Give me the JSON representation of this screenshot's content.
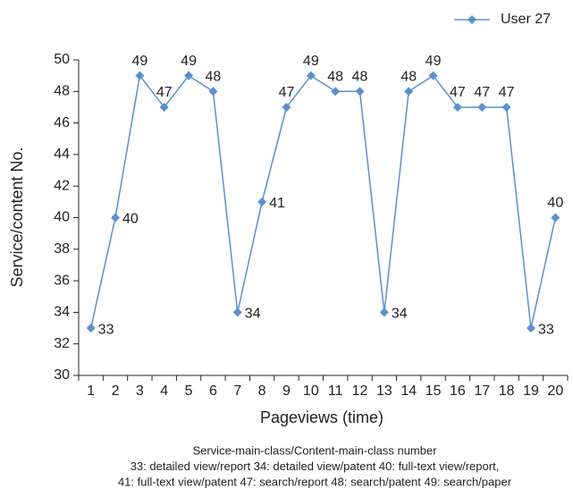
{
  "chart_data": {
    "type": "line",
    "categories": [
      "1",
      "2",
      "3",
      "4",
      "5",
      "6",
      "7",
      "8",
      "9",
      "10",
      "11",
      "12",
      "13",
      "14",
      "15",
      "16",
      "17",
      "18",
      "19",
      "20"
    ],
    "series": [
      {
        "name": "User 27",
        "color": "#5b8fd0",
        "values": [
          33,
          40,
          49,
          47,
          49,
          48,
          34,
          41,
          47,
          49,
          48,
          48,
          34,
          48,
          49,
          47,
          47,
          47,
          33,
          40
        ]
      }
    ],
    "ylim": [
      30,
      50
    ],
    "yticks": [
      30,
      32,
      34,
      36,
      38,
      40,
      42,
      44,
      46,
      48,
      50
    ],
    "xlabel": "Pageviews (time)",
    "ylabel": "Service/content No.",
    "legend": "top-right",
    "notes": [
      "Service-main-class/Content-main-class number",
      "33: detailed view/report  34: detailed view/patent  40: full-text view/report,",
      "41: full-text view/patent  47: search/report  48: search/patent  49: search/paper"
    ]
  }
}
